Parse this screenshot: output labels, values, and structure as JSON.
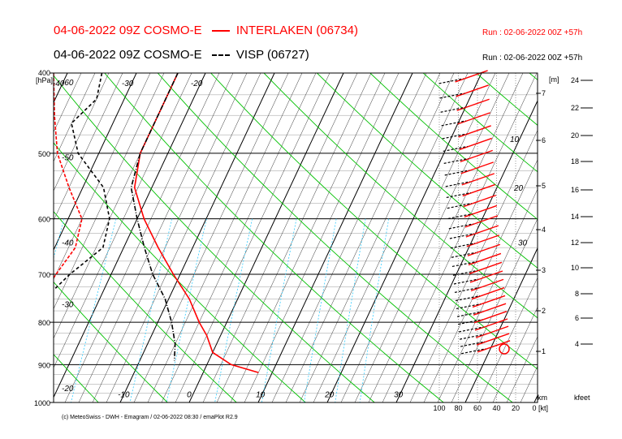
{
  "header": {
    "line1_left": "04-06-2022 09Z COSMO-E",
    "line1_legend": "INTERLAKEN (06734)",
    "line1_run": "Run : 02-06-2022 00Z +57h",
    "line2_left": "04-06-2022 09Z COSMO-E",
    "line2_legend": "VISP (06727)",
    "line2_run": "Run : 02-06-2022 00Z +57h"
  },
  "colors": {
    "interlaken": "#ff0000",
    "visp": "#000000",
    "dry_adiabat": "#00c000",
    "mixing_ratio": "#33ccff"
  },
  "footer": "(c) MeteoSwiss - DWH - Emagram / 02-06-2022 08:30 / emaPlot R2.9",
  "chart_data": {
    "type": "line",
    "title": "Emagram",
    "ylabel": "[hPa]",
    "pressure_ticks": [
      "400",
      "500",
      "600",
      "700",
      "800",
      "900",
      "1000"
    ],
    "pressure_values": [
      400,
      500,
      600,
      700,
      800,
      900,
      1000
    ],
    "top_temp_labels": [
      "-60",
      "-50",
      "-40",
      "-30",
      "-20"
    ],
    "left_isotherm_labels": [
      "-60",
      "-50",
      "-40",
      "-30",
      "-20"
    ],
    "bottom_temp_labels": [
      "-10",
      "0",
      "10",
      "20",
      "30"
    ],
    "theta_labels": [
      "10",
      "20",
      "30"
    ],
    "wind_axis_ticks": [
      "100",
      "80",
      "60",
      "40",
      "20",
      "0 [kt]"
    ],
    "wind_axis_unit": "km",
    "km_axis": {
      "unit": "[m]",
      "ticks": [
        "1",
        "2",
        "3",
        "4",
        "5",
        "6",
        "7"
      ]
    },
    "kfeet_axis": {
      "unit": "kfeet",
      "ticks": [
        "4",
        "6",
        "8",
        "10",
        "12",
        "14",
        "16",
        "18",
        "20",
        "22",
        "24"
      ]
    },
    "series": [
      {
        "name": "INTERLAKEN (06734)",
        "kind": "temperature",
        "pressure": [
          400,
          450,
          500,
          550,
          600,
          650,
          700,
          750,
          800,
          830,
          870,
          900,
          920
        ],
        "temp": [
          -24,
          -24,
          -24,
          -22.5,
          -19,
          -15,
          -11,
          -7,
          -4,
          -2,
          0,
          3.5,
          8
        ]
      },
      {
        "name": "INTERLAKEN (06734)",
        "kind": "dewpoint",
        "pressure": [
          400,
          450,
          500,
          550,
          600,
          650,
          700,
          750,
          800,
          850,
          870,
          885,
          900,
          920
        ],
        "temp": [
          -42,
          -39,
          -36,
          -32,
          -28,
          -27,
          -28,
          -29,
          -32,
          -33,
          -33,
          -32,
          -34,
          -33
        ]
      },
      {
        "name": "VISP (06727)",
        "kind": "temperature",
        "pressure": [
          400,
          450,
          500,
          550,
          600,
          650,
          700,
          750,
          800,
          850,
          890
        ],
        "temp": [
          -24,
          -24,
          -24,
          -23,
          -20,
          -17,
          -14,
          -10.5,
          -8,
          -6,
          -5
        ]
      },
      {
        "name": "VISP (06727)",
        "kind": "dewpoint",
        "pressure": [
          400,
          430,
          460,
          500,
          550,
          600,
          650,
          700,
          750,
          800,
          850,
          880,
          900,
          920
        ],
        "temp": [
          -35,
          -34,
          -36,
          -33,
          -27,
          -24,
          -23,
          -26,
          -28,
          -31,
          -33,
          -33,
          -32,
          -32
        ]
      }
    ]
  }
}
